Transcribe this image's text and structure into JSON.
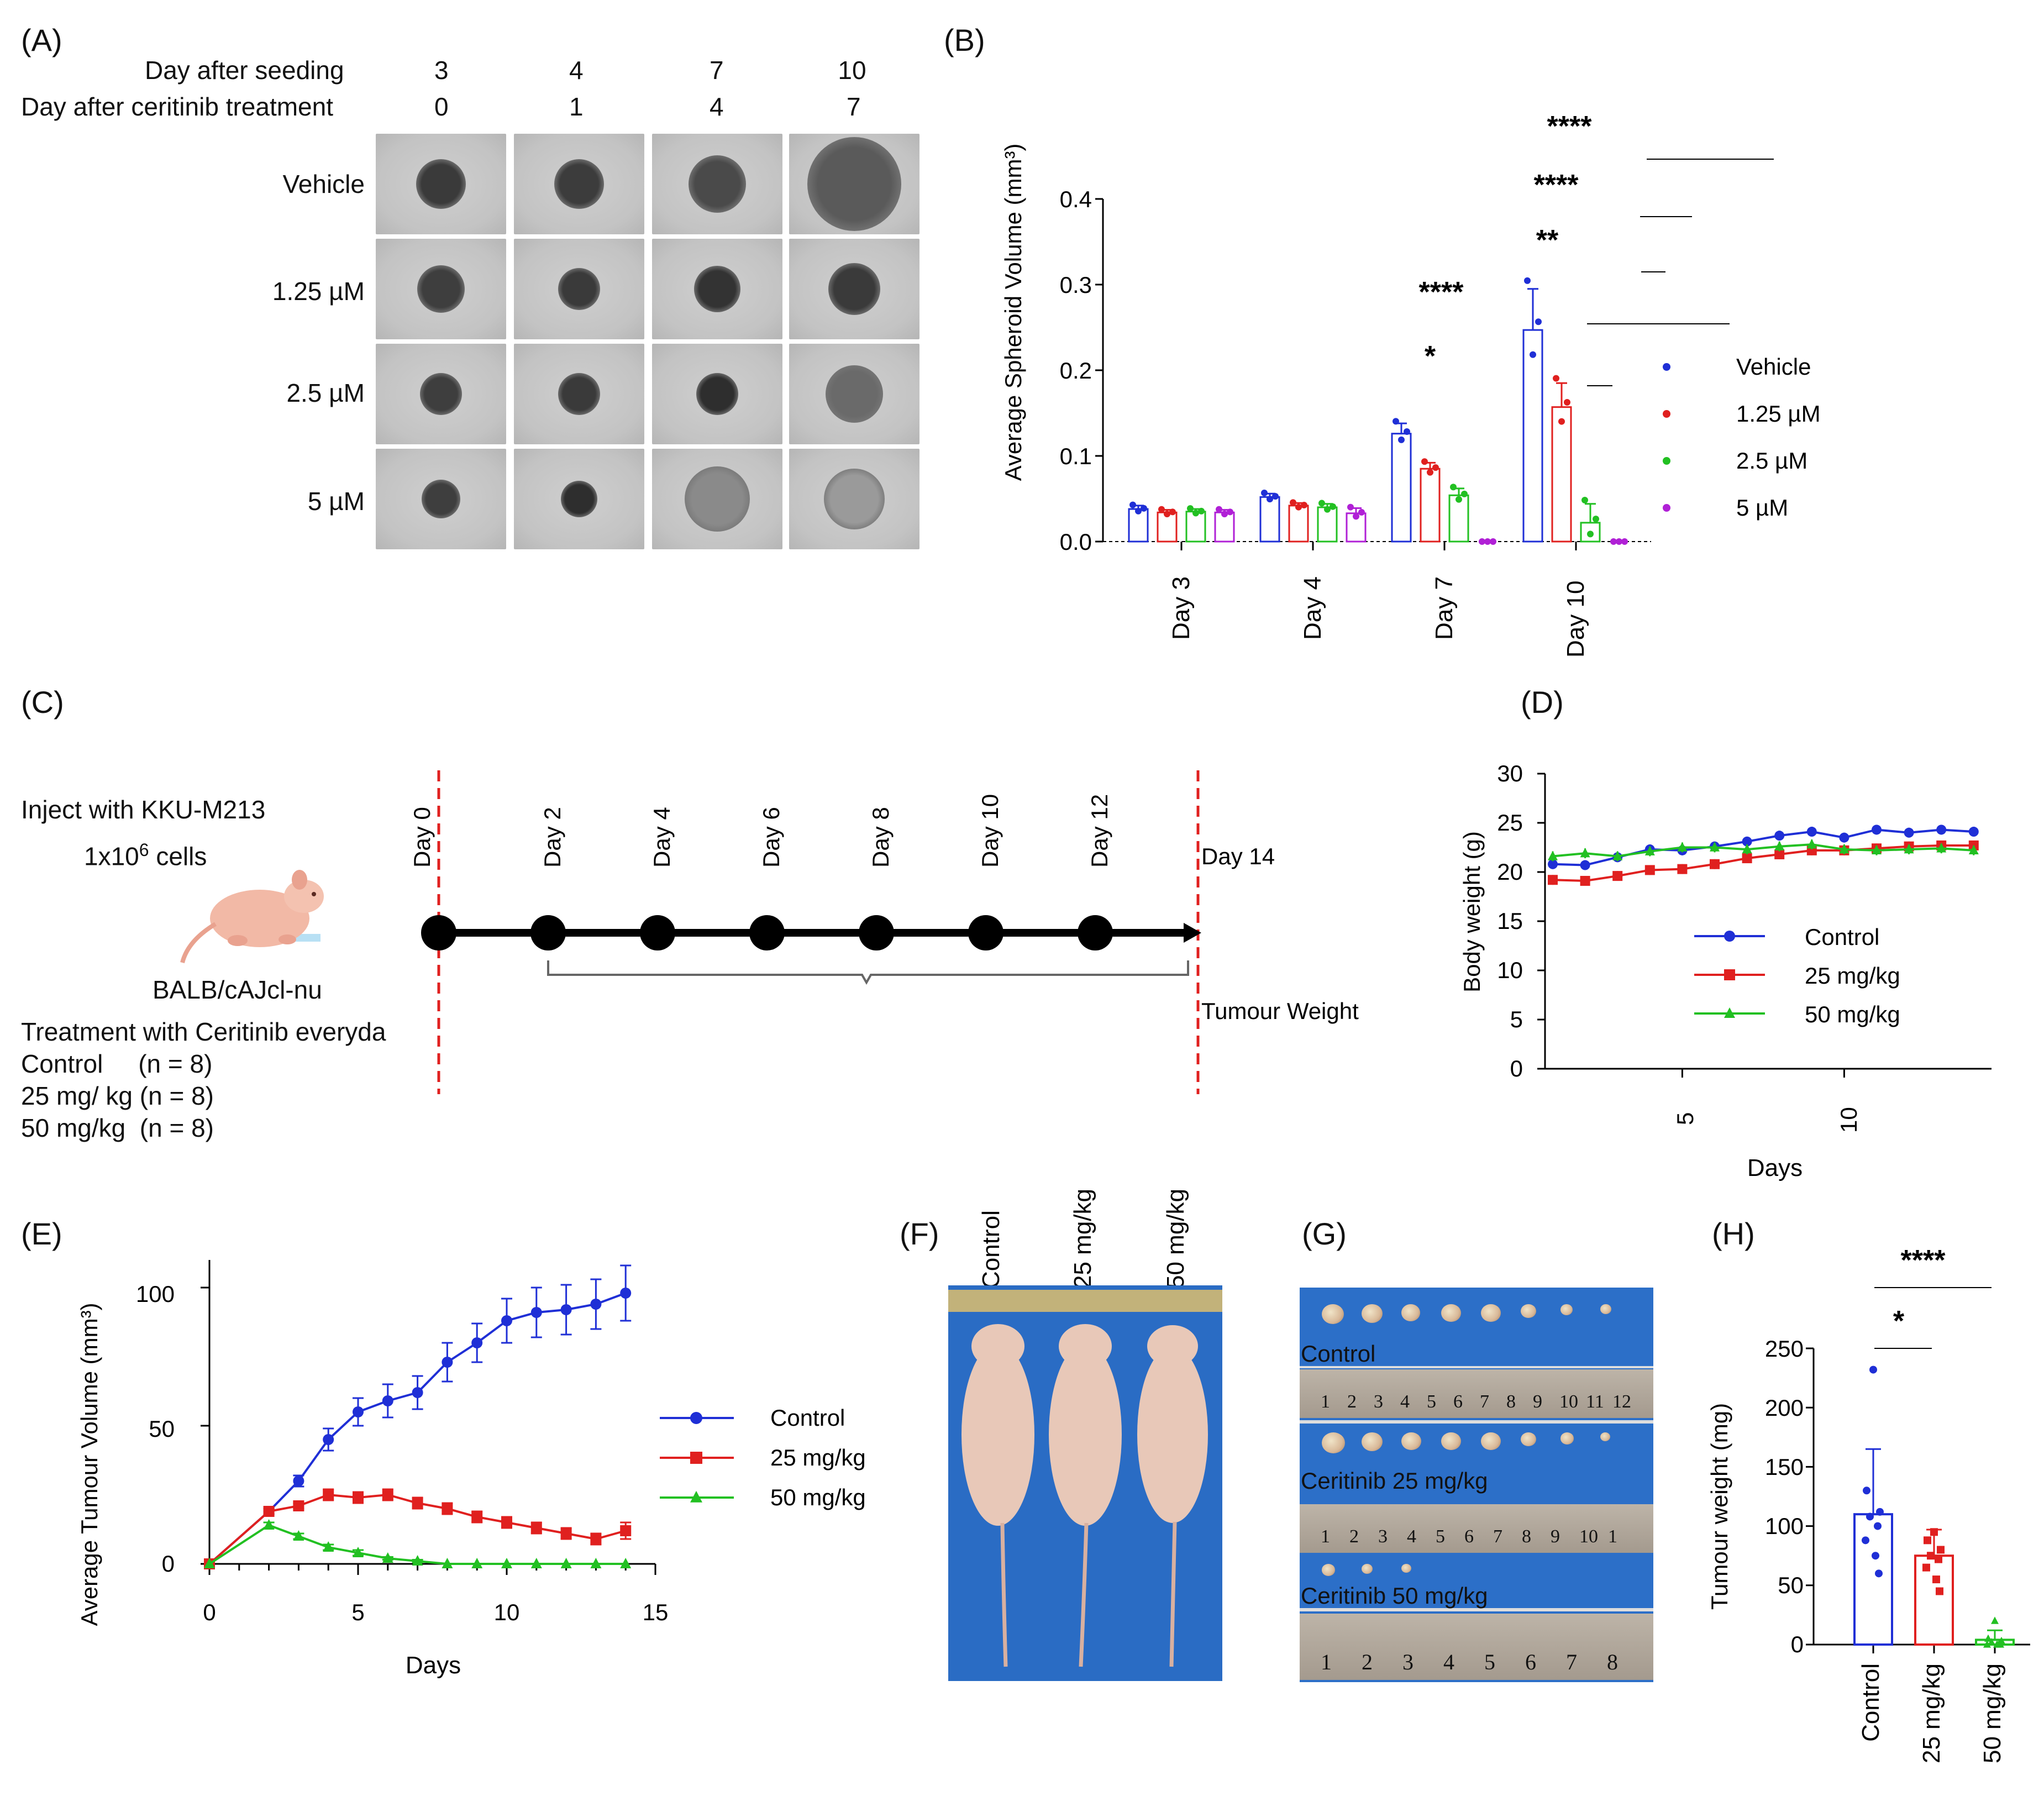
{
  "panels": {
    "A": "(A)",
    "B": "(B)",
    "C": "(C)",
    "D": "(D)",
    "E": "(E)",
    "F": "(F)",
    "G": "(G)",
    "H": "(H)"
  },
  "panel_a": {
    "row_label_1": "Day after seeding",
    "row_label_2": "Day after ceritinib treatment",
    "days_seeding": [
      "3",
      "4",
      "7",
      "10"
    ],
    "days_treatment": [
      "0",
      "1",
      "4",
      "7"
    ],
    "conditions": [
      "Vehicle",
      "1.25 µM",
      "2.5 µM",
      "5 µM"
    ]
  },
  "panel_c": {
    "inject_line1": "Inject with KKU-M213",
    "inject_line2_pre": "1x10",
    "inject_line2_sup": "6",
    "inject_line2_post": " cells",
    "mouse_strain": "BALB/cAJcl-nu",
    "treatment": "Treatment with Ceritinib everyda",
    "groups": [
      "Control     (n = 8)",
      "25 mg/ kg (n = 8)",
      "50 mg/kg  (n = 8)"
    ],
    "timeline_days": [
      "Day 0",
      "Day 2",
      "Day 4",
      "Day 6",
      "Day 8",
      "Day 10",
      "Day 12"
    ],
    "end_day": "Day 14",
    "end_label": "Tumour Weight"
  },
  "panel_f": {
    "columns": [
      "Control",
      "25 mg/kg",
      "50 mg/kg"
    ]
  },
  "panel_g": {
    "rows": [
      "Control",
      "Ceritinib 25 mg/kg",
      "Ceritinib 50 mg/kg"
    ],
    "ruler_1": [
      "1",
      "2",
      "3",
      "4",
      "5",
      "6",
      "7",
      "8",
      "9",
      "10",
      "11",
      "12"
    ],
    "ruler_2": [
      "1",
      "2",
      "3",
      "4",
      "5",
      "6",
      "7",
      "8",
      "9",
      "10",
      "1"
    ],
    "ruler_3": [
      "1",
      "2",
      "3",
      "4",
      "5",
      "6",
      "7",
      "8"
    ]
  },
  "chart_data": [
    {
      "id": "B",
      "type": "bar",
      "ylabel": "Average Spheroid Volume (mm³)",
      "ylim": [
        0,
        0.4
      ],
      "yticks": [
        "0.0",
        "0.1",
        "0.2",
        "0.3",
        "0.4"
      ],
      "categories": [
        "Day 3",
        "Day 4",
        "Day 7",
        "Day 10"
      ],
      "series": [
        {
          "name": "Vehicle",
          "color": "#1f2fd6",
          "values": [
            0.038,
            0.052,
            0.126,
            0.247
          ],
          "errors": [
            0.004,
            0.004,
            0.012,
            0.048
          ]
        },
        {
          "name": "1.25 µM",
          "color": "#e0201f",
          "values": [
            0.034,
            0.042,
            0.085,
            0.157
          ],
          "errors": [
            0.003,
            0.003,
            0.007,
            0.028
          ]
        },
        {
          "name": "2.5 µM",
          "color": "#22c022",
          "values": [
            0.035,
            0.04,
            0.054,
            0.022
          ],
          "errors": [
            0.003,
            0.004,
            0.008,
            0.022
          ]
        },
        {
          "name": "5 µM",
          "color": "#b020d6",
          "values": [
            0.034,
            0.033,
            0.0,
            0.0
          ],
          "errors": [
            0.003,
            0.006,
            0.0,
            0.0
          ]
        }
      ],
      "significance": [
        {
          "label": "*",
          "group": "Day 7"
        },
        {
          "label": "****",
          "group": "Day 7"
        },
        {
          "label": "**",
          "group": "Day 10"
        },
        {
          "label": "****",
          "group": "Day 10"
        },
        {
          "label": "****",
          "group": "Day 10"
        }
      ]
    },
    {
      "id": "D",
      "type": "line",
      "xlabel": "Days",
      "ylabel": "Body weight (g)",
      "ylim": [
        0,
        30
      ],
      "yticks": [
        "0",
        "5",
        "10",
        "15",
        "20",
        "25",
        "30"
      ],
      "xticks": [
        "5",
        "10"
      ],
      "x": [
        1,
        2,
        3,
        4,
        5,
        6,
        7,
        8,
        9,
        10,
        11,
        12,
        13,
        14
      ],
      "series": [
        {
          "name": "Control",
          "color": "#1f2fd6",
          "marker": "circle",
          "values": [
            20.8,
            20.7,
            21.5,
            22.3,
            22.2,
            22.6,
            23.1,
            23.7,
            24.1,
            23.5,
            24.3,
            24.0,
            24.3,
            24.1
          ]
        },
        {
          "name": "25 mg/kg",
          "color": "#e0201f",
          "marker": "square",
          "values": [
            19.2,
            19.1,
            19.6,
            20.2,
            20.3,
            20.8,
            21.4,
            21.8,
            22.2,
            22.2,
            22.4,
            22.6,
            22.7,
            22.7
          ]
        },
        {
          "name": "50 mg/kg",
          "color": "#22c022",
          "marker": "triangle",
          "values": [
            21.6,
            21.9,
            21.6,
            22.1,
            22.5,
            22.5,
            22.3,
            22.6,
            22.8,
            22.3,
            22.2,
            22.3,
            22.4,
            22.2
          ]
        }
      ]
    },
    {
      "id": "E",
      "type": "line",
      "xlabel": "Days",
      "ylabel": "Average Tumour Volume (mm³)",
      "xlim": [
        0,
        15
      ],
      "ylim": [
        0,
        110
      ],
      "xticks": [
        "0",
        "5",
        "10",
        "15"
      ],
      "yticks": [
        "0",
        "50",
        "100"
      ],
      "x": [
        0,
        2,
        3,
        4,
        5,
        6,
        7,
        8,
        9,
        10,
        11,
        12,
        13,
        14
      ],
      "series": [
        {
          "name": "Control",
          "color": "#1f2fd6",
          "marker": "circle",
          "values": [
            0,
            19,
            30,
            45,
            55,
            59,
            62,
            73,
            80,
            88,
            91,
            92,
            94,
            98
          ],
          "errors": [
            0,
            1,
            2,
            4,
            5,
            6,
            6,
            7,
            7,
            8,
            9,
            9,
            9,
            10
          ]
        },
        {
          "name": "25 mg/kg",
          "color": "#e0201f",
          "marker": "square",
          "values": [
            0,
            19,
            21,
            25,
            24,
            25,
            22,
            20,
            17,
            15,
            13,
            11,
            9,
            12
          ],
          "errors": [
            0,
            1,
            1,
            2,
            2,
            2,
            2,
            2,
            2,
            2,
            2,
            2,
            2,
            3
          ]
        },
        {
          "name": "50 mg/kg",
          "color": "#22c022",
          "marker": "triangle",
          "values": [
            0,
            14,
            10,
            6,
            4,
            2,
            1,
            0,
            0,
            0,
            0,
            0,
            0,
            0
          ],
          "errors": [
            0,
            1,
            1,
            1,
            1,
            0.5,
            0.5,
            0,
            0,
            0,
            0,
            0,
            0,
            0
          ]
        }
      ]
    },
    {
      "id": "H",
      "type": "bar",
      "ylabel": "Tumour weight (mg)",
      "ylim": [
        0,
        250
      ],
      "yticks": [
        "0",
        "50",
        "100",
        "150",
        "200",
        "250"
      ],
      "categories": [
        "Control",
        "25 mg/kg",
        "50 mg/kg"
      ],
      "colors": [
        "#1f2fd6",
        "#e0201f",
        "#22c022"
      ],
      "values": [
        110,
        75,
        4
      ],
      "errors": [
        55,
        22,
        8
      ],
      "points": [
        [
          232,
          130,
          112,
          108,
          100,
          88,
          75,
          60
        ],
        [
          95,
          88,
          80,
          75,
          72,
          65,
          55,
          45
        ],
        [
          20,
          5,
          3,
          2,
          1,
          0,
          0,
          0
        ]
      ],
      "significance": [
        {
          "label": "*"
        },
        {
          "label": "****"
        }
      ]
    }
  ]
}
